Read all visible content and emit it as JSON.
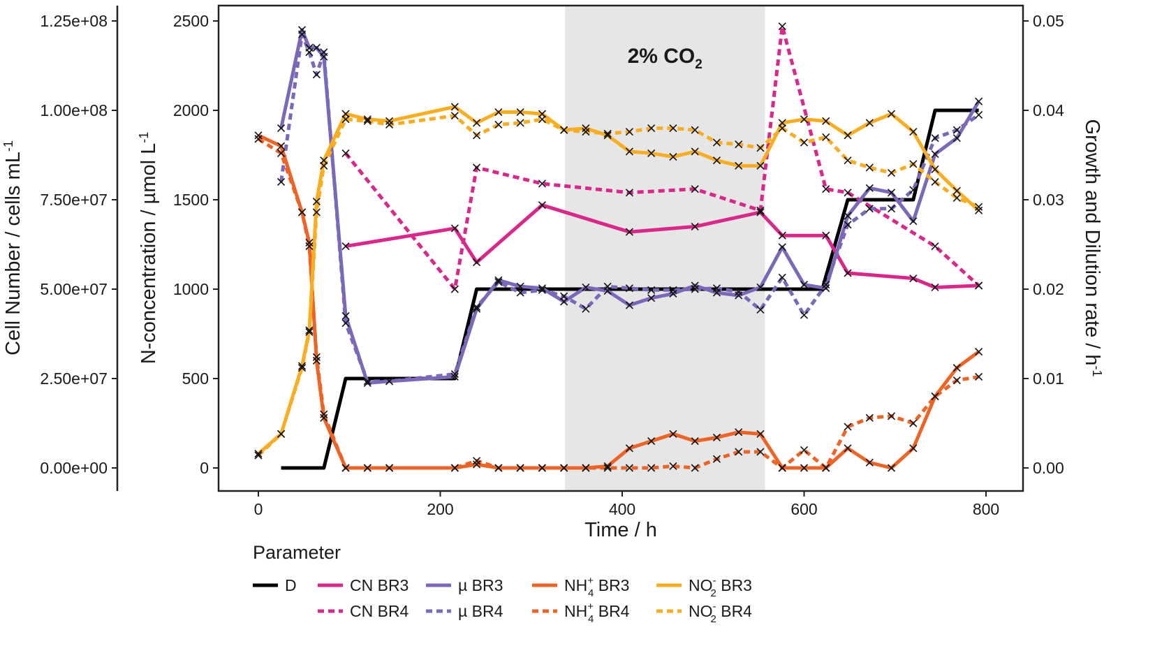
{
  "chart_data": {
    "type": "line",
    "xlabel": "Time / h",
    "x_ticks": [
      "0",
      "200",
      "400",
      "600",
      "800"
    ],
    "xlim": [
      -50,
      800
    ],
    "annotation": {
      "text": "2% CO",
      "sub": "2",
      "shaded_range": [
        337,
        557
      ]
    },
    "axes": {
      "cell": {
        "label": "Cell Number / cells mL",
        "sup": "-1",
        "ticks": [
          "0.00e+00",
          "2.50e+07",
          "5.00e+07",
          "7.50e+07",
          "1.00e+08",
          "1.25e+08"
        ],
        "ylim": [
          0,
          125000000
        ]
      },
      "nconc": {
        "label": "N-concentration / µmol L",
        "sup": "-1",
        "ticks": [
          "0",
          "500",
          "1000",
          "1500",
          "2000",
          "2500"
        ],
        "ylim": [
          0,
          2500
        ]
      },
      "rate": {
        "label": "Growth and Dilution rate / h",
        "sup": "-1",
        "ticks": [
          "0.00",
          "0.01",
          "0.02",
          "0.03",
          "0.04",
          "0.05"
        ],
        "ylim": [
          0,
          0.05
        ]
      }
    },
    "legend": {
      "title": "Parameter",
      "entries": [
        {
          "key": "D",
          "label": "D"
        },
        {
          "key": "cn3",
          "label": "CN BR3"
        },
        {
          "key": "cn4",
          "label": "CN BR4"
        },
        {
          "key": "mu3",
          "label": "µ BR3"
        },
        {
          "key": "mu4",
          "label": "µ BR4"
        },
        {
          "key": "nh3",
          "label": "NH",
          "sup": "+",
          "sub": "4",
          "suffix": " BR3"
        },
        {
          "key": "nh4",
          "label": "NH",
          "sup": "+",
          "sub": "4",
          "suffix": " BR4"
        },
        {
          "key": "no3",
          "label": "NO",
          "sup": "-",
          "sub": "2",
          "suffix": " BR3"
        },
        {
          "key": "no4",
          "label": "NO",
          "sup": "-",
          "sub": "2",
          "suffix": " BR4"
        }
      ]
    },
    "series": [
      {
        "key": "D",
        "name": "D",
        "axis": "rate",
        "color": "#000000",
        "dash": false,
        "markers": false,
        "x": [
          25,
          72,
          96,
          216,
          240,
          620,
          648,
          720,
          744,
          792
        ],
        "y": [
          0,
          0,
          0.01,
          0.01,
          0.02,
          0.02,
          0.03,
          0.03,
          0.04,
          0.04
        ]
      },
      {
        "key": "cn3",
        "name": "CN BR3",
        "axis": "nconc",
        "color": "#d9278a",
        "dash": false,
        "markers": true,
        "x": [
          96,
          216,
          240,
          312,
          408,
          480,
          552,
          576,
          624,
          648,
          720,
          744,
          792
        ],
        "y": [
          1240,
          1340,
          1150,
          1470,
          1320,
          1350,
          1430,
          1300,
          1300,
          1090,
          1060,
          1010,
          1020
        ]
      },
      {
        "key": "cn4",
        "name": "CN BR4",
        "axis": "nconc",
        "color": "#d9278a",
        "dash": true,
        "markers": true,
        "x": [
          96,
          216,
          240,
          312,
          408,
          480,
          552,
          576,
          624,
          648,
          744,
          792
        ],
        "y": [
          1760,
          1000,
          1680,
          1590,
          1540,
          1560,
          1440,
          2470,
          1560,
          1540,
          1240,
          1020
        ]
      },
      {
        "key": "mu3",
        "name": "µ BR3",
        "axis": "rate",
        "color": "#7b68b8",
        "dash": false,
        "markers": true,
        "x": [
          25,
          48,
          56,
          64,
          72,
          96,
          120,
          144,
          216,
          240,
          264,
          288,
          312,
          336,
          360,
          384,
          408,
          432,
          456,
          480,
          504,
          528,
          552,
          576,
          600,
          624,
          648,
          672,
          696,
          720,
          744,
          768,
          792
        ],
        "y": [
          0.038,
          0.049,
          0.047,
          0.047,
          0.046,
          0.017,
          0.0095,
          0.0097,
          0.0102,
          0.0178,
          0.021,
          0.0203,
          0.0201,
          0.0186,
          0.0202,
          0.0198,
          0.0182,
          0.019,
          0.0195,
          0.0204,
          0.0196,
          0.0193,
          0.0202,
          0.0247,
          0.0205,
          0.0201,
          0.0282,
          0.0313,
          0.0308,
          0.0276,
          0.0351,
          0.0369,
          0.041
        ]
      },
      {
        "key": "mu4",
        "name": "µ BR4",
        "axis": "rate",
        "color": "#7b68b8",
        "dash": true,
        "markers": true,
        "x": [
          25,
          48,
          56,
          64,
          72,
          96,
          120,
          144,
          216,
          240,
          264,
          288,
          312,
          336,
          360,
          384,
          408,
          432,
          456,
          480,
          504,
          528,
          552,
          576,
          600,
          624,
          648,
          672,
          696,
          720,
          744,
          768,
          792
        ],
        "y": [
          0.032,
          0.0485,
          0.0465,
          0.044,
          0.0465,
          0.0162,
          0.0097,
          0.0097,
          0.0105,
          0.018,
          0.0208,
          0.0196,
          0.0199,
          0.0192,
          0.0178,
          0.0203,
          0.0201,
          0.0199,
          0.0199,
          0.02,
          0.0201,
          0.0197,
          0.0177,
          0.0213,
          0.0171,
          0.0205,
          0.0272,
          0.029,
          0.029,
          0.0311,
          0.0369,
          0.0378,
          0.0395
        ]
      },
      {
        "key": "nh3",
        "name": "NH4+ BR3",
        "axis": "nconc",
        "color": "#ee6326",
        "dash": false,
        "markers": true,
        "x": [
          0,
          25,
          48,
          56,
          64,
          72,
          96,
          120,
          144,
          216,
          240,
          264,
          288,
          312,
          336,
          360,
          384,
          408,
          432,
          456,
          480,
          504,
          528,
          552,
          576,
          600,
          624,
          648,
          672,
          696,
          720,
          744,
          768,
          792
        ],
        "y": [
          1860,
          1800,
          1430,
          1260,
          600,
          280,
          0,
          0,
          0,
          0,
          20,
          0,
          0,
          0,
          0,
          0,
          10,
          110,
          150,
          190,
          150,
          170,
          200,
          190,
          0,
          0,
          0,
          110,
          30,
          0,
          110,
          400,
          560,
          650
        ]
      },
      {
        "key": "nh4",
        "name": "NH4+ BR4",
        "axis": "nconc",
        "color": "#ee6326",
        "dash": true,
        "markers": true,
        "x": [
          0,
          25,
          48,
          56,
          64,
          72,
          96,
          120,
          144,
          216,
          240,
          264,
          288,
          312,
          336,
          360,
          384,
          408,
          432,
          456,
          480,
          504,
          528,
          552,
          576,
          600,
          624,
          648,
          672,
          696,
          720,
          744,
          768,
          792
        ],
        "y": [
          1840,
          1760,
          1430,
          1240,
          620,
          300,
          0,
          0,
          0,
          0,
          40,
          0,
          0,
          0,
          0,
          0,
          0,
          0,
          0,
          10,
          0,
          50,
          90,
          90,
          0,
          100,
          0,
          230,
          280,
          290,
          250,
          400,
          490,
          510
        ]
      },
      {
        "key": "no3",
        "name": "NO2- BR3",
        "axis": "nconc",
        "color": "#f9ae21",
        "dash": false,
        "markers": true,
        "x": [
          0,
          25,
          48,
          56,
          64,
          72,
          96,
          120,
          144,
          216,
          240,
          264,
          288,
          312,
          336,
          360,
          384,
          408,
          432,
          456,
          480,
          504,
          528,
          552,
          576,
          600,
          624,
          648,
          672,
          696,
          720,
          744,
          768,
          792
        ],
        "y": [
          80,
          190,
          570,
          770,
          1490,
          1720,
          1980,
          1950,
          1940,
          2020,
          1930,
          1990,
          1990,
          1980,
          1890,
          1900,
          1860,
          1770,
          1760,
          1740,
          1770,
          1720,
          1690,
          1690,
          1930,
          1950,
          1940,
          1860,
          1930,
          1980,
          1880,
          1670,
          1550,
          1440
        ]
      },
      {
        "key": "no4",
        "name": "NO2- BR4",
        "axis": "nconc",
        "color": "#f9ae21",
        "dash": true,
        "markers": true,
        "x": [
          0,
          25,
          48,
          56,
          64,
          72,
          96,
          120,
          144,
          216,
          240,
          264,
          288,
          312,
          336,
          360,
          384,
          408,
          432,
          456,
          480,
          504,
          528,
          552,
          576,
          600,
          624,
          648,
          672,
          696,
          720,
          744,
          768,
          792
        ],
        "y": [
          70,
          190,
          560,
          760,
          1430,
          1690,
          1950,
          1940,
          1920,
          1970,
          1860,
          1920,
          1930,
          1950,
          1890,
          1880,
          1870,
          1880,
          1900,
          1900,
          1890,
          1820,
          1810,
          1790,
          1900,
          1820,
          1850,
          1720,
          1680,
          1650,
          1700,
          1600,
          1510,
          1460
        ]
      }
    ]
  }
}
